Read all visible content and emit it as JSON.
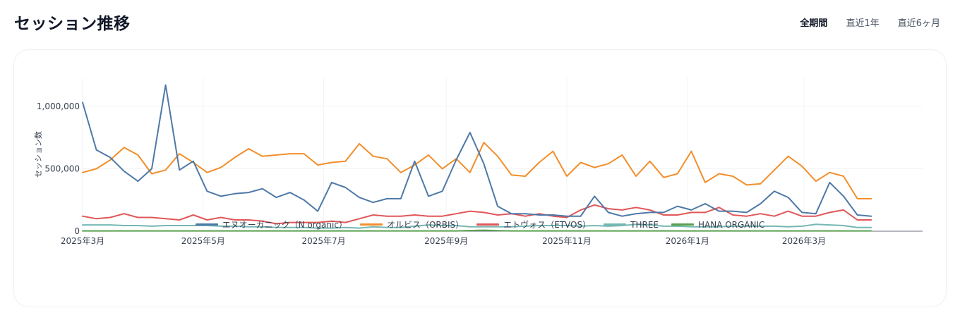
{
  "header": {
    "title": "セッション推移",
    "tabs": [
      {
        "label": "全期間",
        "active": true
      },
      {
        "label": "直近1年",
        "active": false
      },
      {
        "label": "直近6ヶ月",
        "active": false
      }
    ]
  },
  "chart_data": {
    "type": "line",
    "title": "",
    "xlabel": "",
    "ylabel": "セッション数",
    "ylim": [
      0,
      1230000
    ],
    "y_ticks": [
      {
        "value": 0,
        "label": "0"
      },
      {
        "value": 500000,
        "label": "500,000"
      },
      {
        "value": 1000000,
        "label": "1,000,000"
      }
    ],
    "x_range": [
      "2025-03-01",
      "2026-04-30"
    ],
    "x_ticks": [
      {
        "date": "2025-03-01",
        "label": "2025年3月"
      },
      {
        "date": "2025-05-01",
        "label": "2025年5月"
      },
      {
        "date": "2025-07-01",
        "label": "2025年7月"
      },
      {
        "date": "2025-09-01",
        "label": "2025年9月"
      },
      {
        "date": "2025-11-01",
        "label": "2025年11月"
      },
      {
        "date": "2026-01-01",
        "label": "2026年1月"
      },
      {
        "date": "2026-03-01",
        "label": "2026年3月"
      }
    ],
    "grid": true,
    "legend_position": "bottom",
    "x": [
      "2025-03-01",
      "2025-03-08",
      "2025-03-15",
      "2025-03-22",
      "2025-03-29",
      "2025-04-05",
      "2025-04-12",
      "2025-04-19",
      "2025-04-26",
      "2025-05-03",
      "2025-05-10",
      "2025-05-17",
      "2025-05-24",
      "2025-05-31",
      "2025-06-07",
      "2025-06-14",
      "2025-06-21",
      "2025-06-28",
      "2025-07-05",
      "2025-07-12",
      "2025-07-19",
      "2025-07-26",
      "2025-08-02",
      "2025-08-09",
      "2025-08-16",
      "2025-08-23",
      "2025-08-30",
      "2025-09-06",
      "2025-09-13",
      "2025-09-20",
      "2025-09-27",
      "2025-10-04",
      "2025-10-11",
      "2025-10-18",
      "2025-10-25",
      "2025-11-01",
      "2025-11-08",
      "2025-11-15",
      "2025-11-22",
      "2025-11-29",
      "2025-12-06",
      "2025-12-13",
      "2025-12-20",
      "2025-12-27",
      "2026-01-03",
      "2026-01-10",
      "2026-01-17",
      "2026-01-24",
      "2026-01-31",
      "2026-02-07",
      "2026-02-14",
      "2026-02-21",
      "2026-02-28",
      "2026-03-07",
      "2026-03-14",
      "2026-03-21",
      "2026-03-28",
      "2026-04-04"
    ],
    "series": [
      {
        "name": "エヌオーガニック（N organic）",
        "color": "#4e79a7",
        "values": [
          1030000,
          650000,
          590000,
          480000,
          400000,
          500000,
          1170000,
          490000,
          560000,
          320000,
          280000,
          300000,
          310000,
          340000,
          270000,
          310000,
          250000,
          160000,
          390000,
          350000,
          270000,
          230000,
          260000,
          260000,
          560000,
          280000,
          320000,
          570000,
          790000,
          540000,
          200000,
          140000,
          140000,
          130000,
          130000,
          120000,
          120000,
          280000,
          150000,
          120000,
          140000,
          150000,
          150000,
          200000,
          170000,
          220000,
          160000,
          160000,
          150000,
          220000,
          320000,
          270000,
          150000,
          140000,
          390000,
          280000,
          130000,
          120000
        ]
      },
      {
        "name": "オルビス（ORBIS）",
        "color": "#f28e2b",
        "values": [
          470000,
          500000,
          570000,
          670000,
          610000,
          460000,
          490000,
          620000,
          550000,
          470000,
          510000,
          590000,
          660000,
          600000,
          610000,
          620000,
          620000,
          530000,
          550000,
          560000,
          700000,
          600000,
          580000,
          470000,
          530000,
          610000,
          500000,
          580000,
          470000,
          710000,
          600000,
          450000,
          440000,
          550000,
          640000,
          440000,
          550000,
          510000,
          540000,
          610000,
          440000,
          560000,
          430000,
          460000,
          640000,
          390000,
          460000,
          440000,
          370000,
          380000,
          490000,
          600000,
          520000,
          400000,
          470000,
          440000,
          260000,
          260000
        ]
      },
      {
        "name": "エトヴォス（ETVOS）",
        "color": "#e15759",
        "values": [
          120000,
          100000,
          110000,
          140000,
          110000,
          110000,
          100000,
          90000,
          130000,
          90000,
          110000,
          90000,
          90000,
          80000,
          60000,
          70000,
          70000,
          70000,
          80000,
          70000,
          100000,
          130000,
          120000,
          120000,
          130000,
          120000,
          120000,
          140000,
          160000,
          150000,
          130000,
          140000,
          120000,
          140000,
          120000,
          110000,
          170000,
          210000,
          180000,
          170000,
          190000,
          170000,
          130000,
          130000,
          150000,
          150000,
          190000,
          130000,
          120000,
          140000,
          120000,
          160000,
          120000,
          120000,
          150000,
          170000,
          90000,
          90000
        ]
      },
      {
        "name": "THREE",
        "color": "#76b7b2",
        "values": [
          50000,
          50000,
          50000,
          45000,
          45000,
          40000,
          45000,
          45000,
          45000,
          45000,
          40000,
          40000,
          35000,
          35000,
          30000,
          30000,
          30000,
          25000,
          25000,
          30000,
          25000,
          35000,
          30000,
          30000,
          40000,
          50000,
          45000,
          45000,
          35000,
          35000,
          35000,
          35000,
          40000,
          45000,
          45000,
          45000,
          40000,
          45000,
          40000,
          45000,
          55000,
          50000,
          40000,
          40000,
          35000,
          35000,
          35000,
          40000,
          40000,
          40000,
          40000,
          35000,
          40000,
          55000,
          50000,
          45000,
          30000,
          30000
        ]
      },
      {
        "name": "HANA ORGANIC",
        "color": "#59a14f",
        "values": [
          2000,
          2000,
          2000,
          2000,
          2000,
          2000,
          2000,
          2000,
          2000,
          2000,
          2000,
          2000,
          2000,
          2000,
          2000,
          2000,
          2000,
          2000,
          2000,
          2000,
          2000,
          2000,
          2000,
          2000,
          2000,
          2000,
          2000,
          2000,
          5000,
          8000,
          4000,
          2000,
          2000,
          2000,
          2000,
          2000,
          2000,
          2000,
          2000,
          2000,
          2000,
          2000,
          2000,
          2000,
          2000,
          2000,
          2000,
          2000,
          2000,
          2000,
          2000,
          2000,
          2000,
          2000,
          2000,
          2000,
          2000,
          2000
        ]
      }
    ]
  }
}
